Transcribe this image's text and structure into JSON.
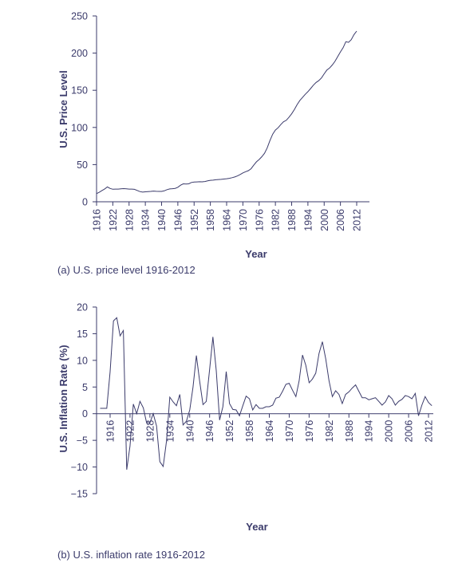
{
  "chart_data": [
    {
      "type": "line",
      "xlabel": "Year",
      "ylabel": "U.S. Price Level",
      "caption": "(a) U.S. price level 1916-2012",
      "xlim": [
        1916,
        2012
      ],
      "ylim": [
        0,
        250
      ],
      "x_ticks": [
        1916,
        1922,
        1928,
        1934,
        1940,
        1946,
        1952,
        1958,
        1964,
        1970,
        1976,
        1982,
        1988,
        1994,
        2000,
        2006,
        2012
      ],
      "y_ticks": [
        0,
        50,
        100,
        150,
        200,
        250
      ],
      "series": [
        {
          "x": [
            1916,
            1917,
            1918,
            1919,
            1920,
            1921,
            1922,
            1923,
            1924,
            1925,
            1926,
            1927,
            1928,
            1929,
            1930,
            1931,
            1932,
            1933,
            1934,
            1935,
            1936,
            1937,
            1938,
            1939,
            1940,
            1941,
            1942,
            1943,
            1944,
            1945,
            1946,
            1947,
            1948,
            1949,
            1950,
            1951,
            1952,
            1953,
            1954,
            1955,
            1956,
            1957,
            1958,
            1959,
            1960,
            1961,
            1962,
            1963,
            1964,
            1965,
            1966,
            1967,
            1968,
            1969,
            1970,
            1971,
            1972,
            1973,
            1974,
            1975,
            1976,
            1977,
            1978,
            1979,
            1980,
            1981,
            1982,
            1983,
            1984,
            1985,
            1986,
            1987,
            1988,
            1989,
            1990,
            1991,
            1992,
            1993,
            1994,
            1995,
            1996,
            1997,
            1998,
            1999,
            2000,
            2001,
            2002,
            2003,
            2004,
            2005,
            2006,
            2007,
            2008,
            2009,
            2010,
            2011,
            2012
          ],
          "values": [
            10.9,
            12.8,
            15.1,
            17.3,
            20.0,
            17.9,
            16.8,
            17.1,
            17.1,
            17.5,
            17.7,
            17.4,
            17.1,
            17.1,
            16.7,
            15.2,
            13.7,
            13.0,
            13.4,
            13.7,
            13.9,
            14.4,
            14.1,
            13.9,
            14.0,
            14.7,
            16.3,
            17.3,
            17.6,
            18.0,
            19.5,
            22.3,
            24.1,
            23.8,
            24.1,
            26.0,
            26.5,
            26.7,
            26.9,
            26.8,
            27.2,
            28.1,
            28.9,
            29.1,
            29.6,
            29.9,
            30.2,
            30.6,
            31.0,
            31.5,
            32.4,
            33.4,
            34.8,
            36.7,
            38.8,
            40.5,
            41.8,
            44.4,
            49.3,
            53.8,
            56.9,
            60.6,
            65.2,
            72.6,
            82.4,
            90.9,
            96.5,
            99.6,
            103.9,
            107.6,
            109.6,
            113.6,
            118.3,
            124.0,
            130.7,
            136.2,
            140.3,
            144.5,
            148.2,
            152.4,
            156.9,
            160.5,
            163.0,
            166.6,
            172.2,
            177.1,
            179.9,
            184.0,
            188.9,
            195.3,
            201.6,
            207.3,
            215.3,
            214.5,
            218.1,
            224.9,
            229.6
          ]
        }
      ]
    },
    {
      "type": "line",
      "xlabel": "Year",
      "ylabel": "U.S. Inflation Rate (%)",
      "caption": "(b) U.S. inflation rate 1916-2012",
      "xlim": [
        1916,
        2012
      ],
      "ylim": [
        -15,
        20
      ],
      "x_ticks": [
        1916,
        1922,
        1928,
        1934,
        1940,
        1946,
        1952,
        1958,
        1964,
        1970,
        1976,
        1982,
        1988,
        1994,
        2000,
        2006,
        2012
      ],
      "y_ticks": [
        -15,
        -10,
        -5,
        0,
        5,
        10,
        15,
        20
      ],
      "series": [
        {
          "x": [
            1913,
            1914,
            1915,
            1916,
            1917,
            1918,
            1919,
            1920,
            1921,
            1922,
            1923,
            1924,
            1925,
            1926,
            1927,
            1928,
            1929,
            1930,
            1931,
            1932,
            1933,
            1934,
            1935,
            1936,
            1937,
            1938,
            1939,
            1940,
            1941,
            1942,
            1943,
            1944,
            1945,
            1946,
            1947,
            1948,
            1949,
            1950,
            1951,
            1952,
            1953,
            1954,
            1955,
            1956,
            1957,
            1958,
            1959,
            1960,
            1961,
            1962,
            1963,
            1964,
            1965,
            1966,
            1967,
            1968,
            1969,
            1970,
            1971,
            1972,
            1973,
            1974,
            1975,
            1976,
            1977,
            1978,
            1979,
            1980,
            1981,
            1982,
            1983,
            1984,
            1985,
            1986,
            1987,
            1988,
            1989,
            1990,
            1991,
            1992,
            1993,
            1994,
            1995,
            1996,
            1997,
            1998,
            1999,
            2000,
            2001,
            2002,
            2003,
            2004,
            2005,
            2006,
            2007,
            2008,
            2009,
            2010,
            2011,
            2012,
            2013
          ],
          "values": [
            1.0,
            1.0,
            1.0,
            7.9,
            17.4,
            18.0,
            14.6,
            15.6,
            -10.5,
            -6.1,
            1.8,
            0.0,
            2.3,
            1.1,
            -1.7,
            -1.7,
            0.0,
            -2.3,
            -9.0,
            -9.9,
            -5.1,
            3.1,
            2.2,
            1.5,
            3.6,
            -2.1,
            -1.4,
            0.7,
            5.0,
            10.9,
            6.1,
            1.7,
            2.3,
            8.3,
            14.4,
            8.1,
            -1.2,
            1.3,
            7.9,
            1.9,
            0.8,
            0.7,
            -0.4,
            1.5,
            3.3,
            2.8,
            0.7,
            1.7,
            1.0,
            1.0,
            1.3,
            1.3,
            1.6,
            2.9,
            3.1,
            4.2,
            5.5,
            5.7,
            4.4,
            3.2,
            6.2,
            11.0,
            9.1,
            5.8,
            6.5,
            7.6,
            11.3,
            13.5,
            10.3,
            6.2,
            3.2,
            4.3,
            3.6,
            1.9,
            3.6,
            4.1,
            4.8,
            5.4,
            4.2,
            3.0,
            3.0,
            2.6,
            2.8,
            3.0,
            2.3,
            1.6,
            2.2,
            3.4,
            2.8,
            1.6,
            2.3,
            2.7,
            3.4,
            3.2,
            2.8,
            3.8,
            -0.4,
            1.6,
            3.2,
            2.1,
            1.5
          ]
        }
      ]
    }
  ]
}
